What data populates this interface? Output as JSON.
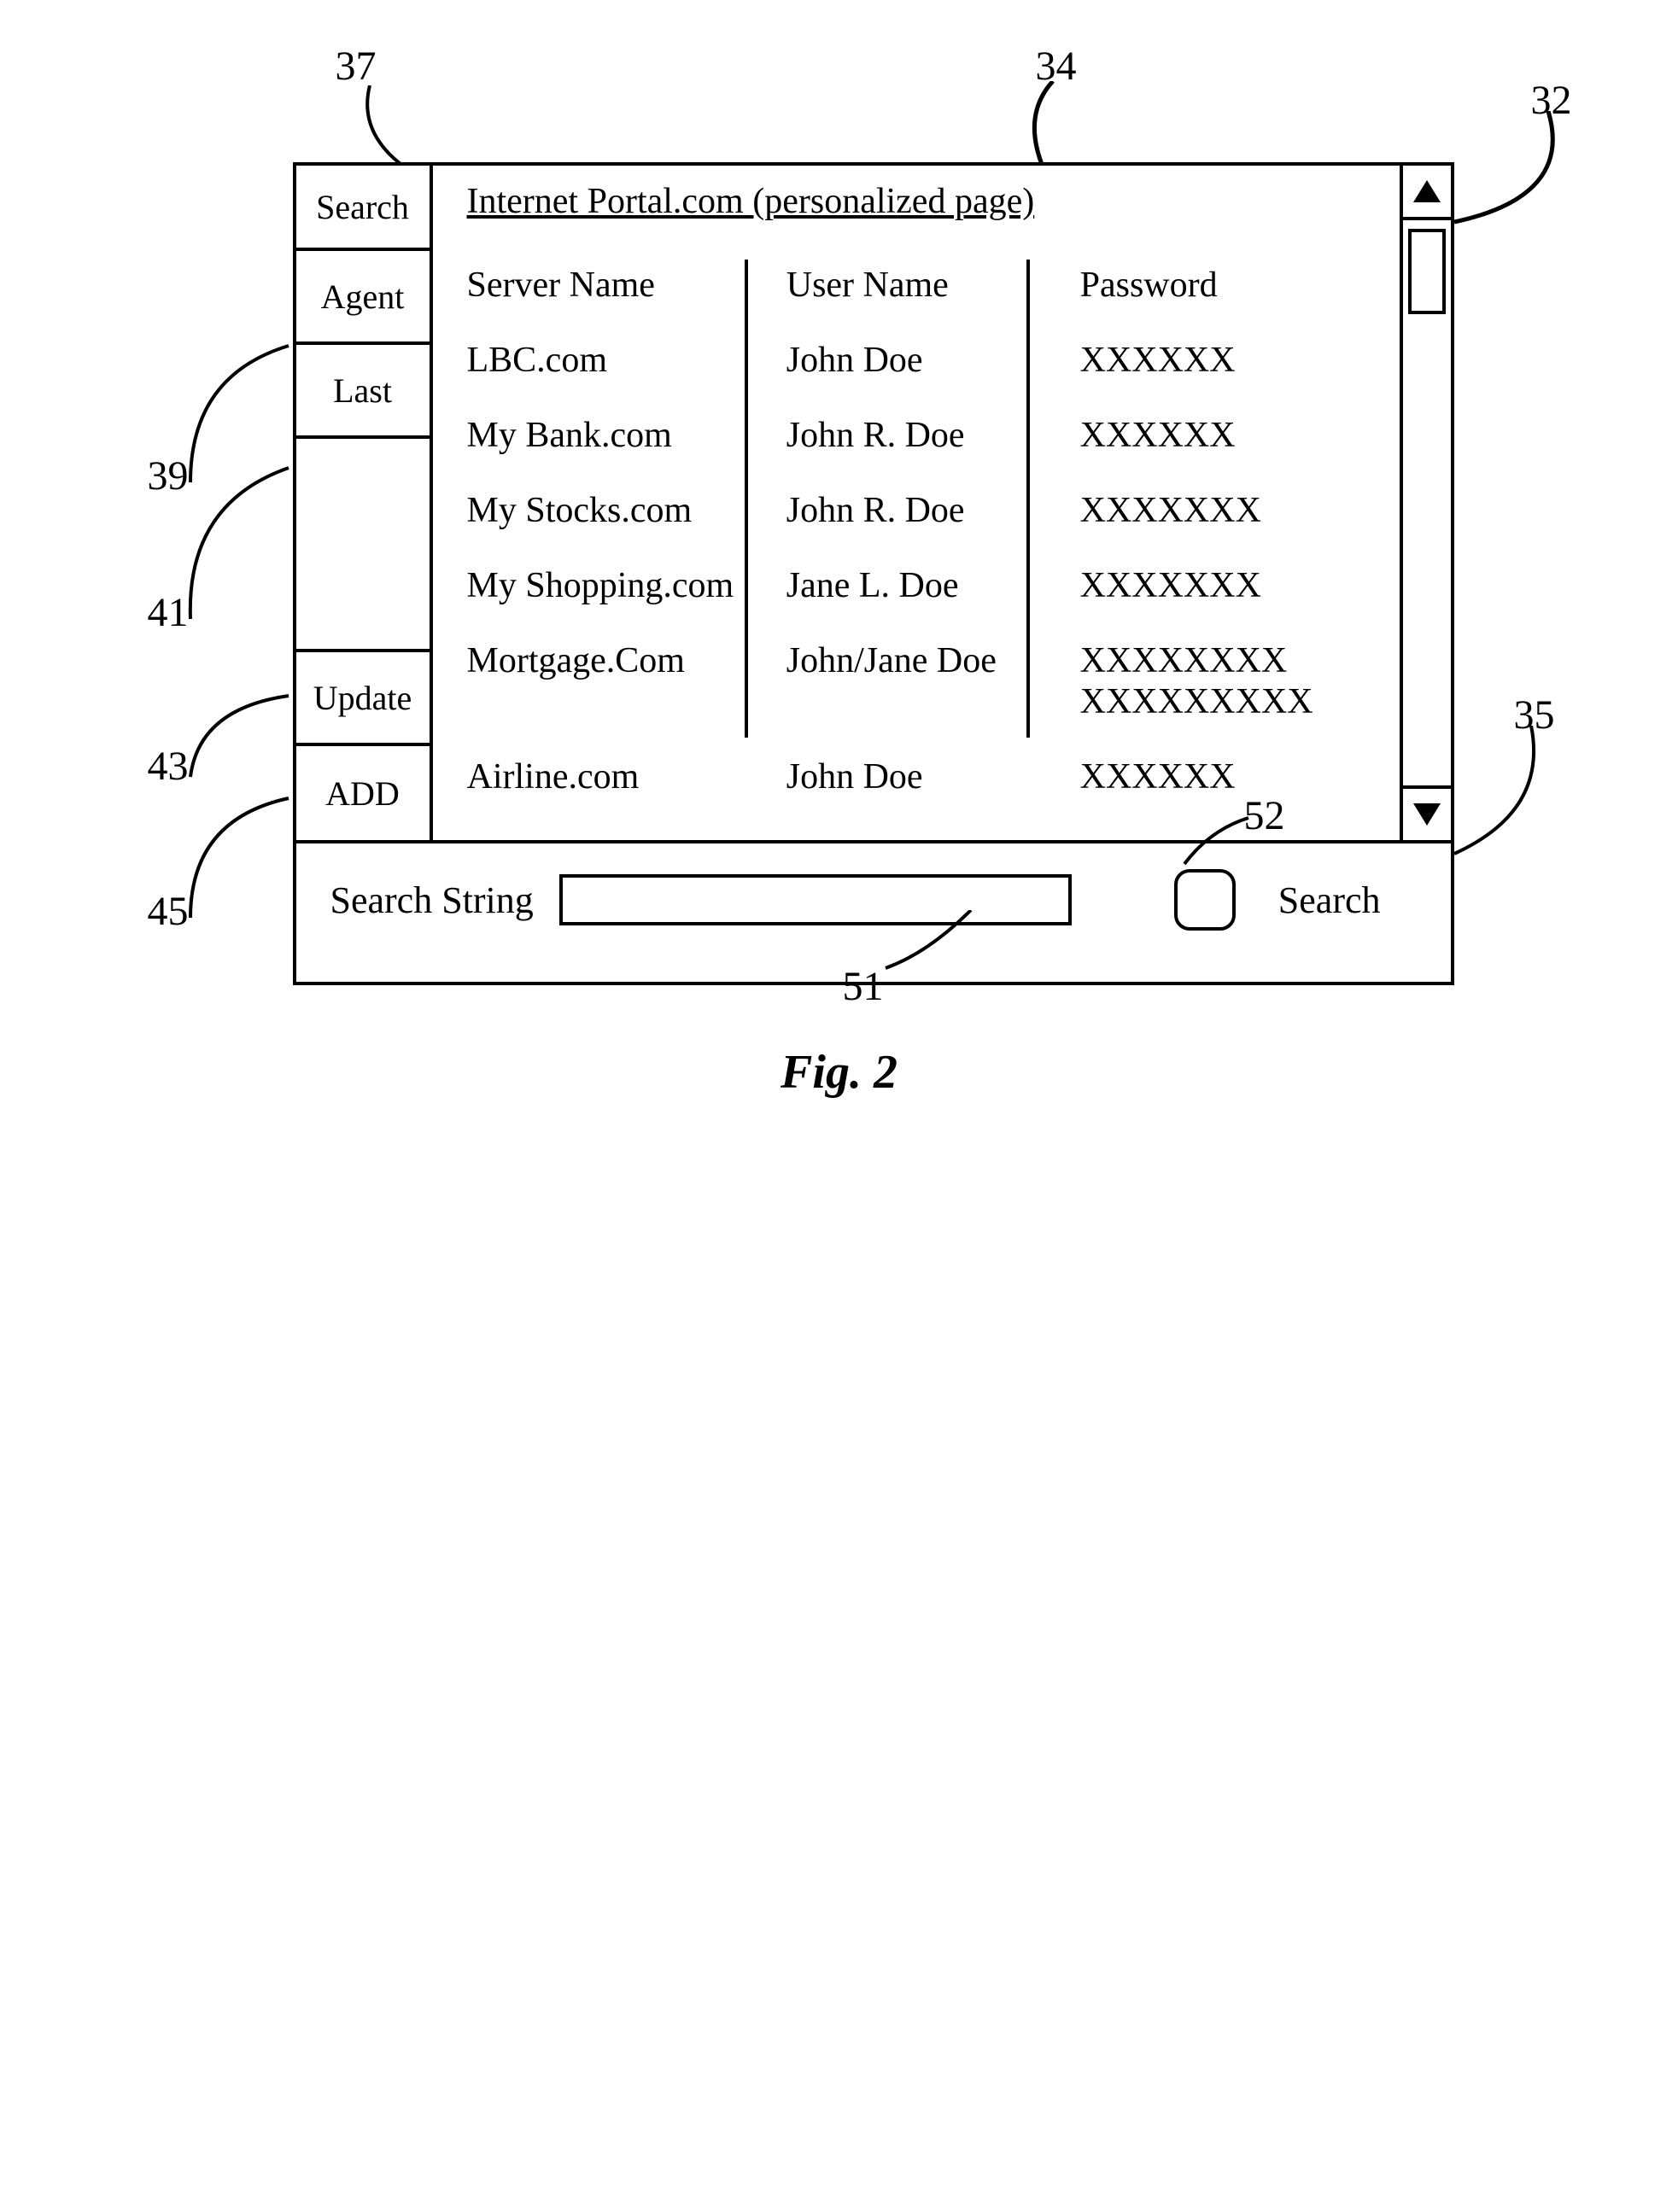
{
  "page_title": "Internet Portal.com (personalized page)",
  "sidebar": {
    "items": [
      {
        "label": "Search"
      },
      {
        "label": "Agent"
      },
      {
        "label": "Last"
      },
      {
        "label": "Update"
      },
      {
        "label": "ADD"
      }
    ]
  },
  "table": {
    "columns": [
      "Server Name",
      "User Name",
      "Password"
    ],
    "rows": [
      {
        "server": "LBC.com",
        "user": "John Doe",
        "password": "XXXXXX"
      },
      {
        "server": "My Bank.com",
        "user": "John R. Doe",
        "password": "XXXXXX"
      },
      {
        "server": "My Stocks.com",
        "user": "John R. Doe",
        "password": "XXXXXXX"
      },
      {
        "server": "My Shopping.com",
        "user": "Jane L. Doe",
        "password": "XXXXXXX"
      },
      {
        "server": "Mortgage.Com",
        "user": "John/Jane Doe",
        "password": "XXXXXXXX\nXXXXXXXXX"
      },
      {
        "server": "Airline.com",
        "user": "John Doe",
        "password": "XXXXXX"
      }
    ]
  },
  "footer": {
    "label": "Search String",
    "button_label": "Search"
  },
  "refs": {
    "r32": "32",
    "r34": "34",
    "r35": "35",
    "r37": "37",
    "r39": "39",
    "r41": "41",
    "r43": "43",
    "r45": "45",
    "r51": "51",
    "r52": "52"
  },
  "caption": "Fig. 2",
  "style": {
    "border_color": "#000000",
    "background": "#ffffff",
    "font_family": "Times New Roman",
    "title_fontsize": 42,
    "cell_fontsize": 42,
    "ref_fontsize": 48,
    "caption_fontsize": 56
  }
}
